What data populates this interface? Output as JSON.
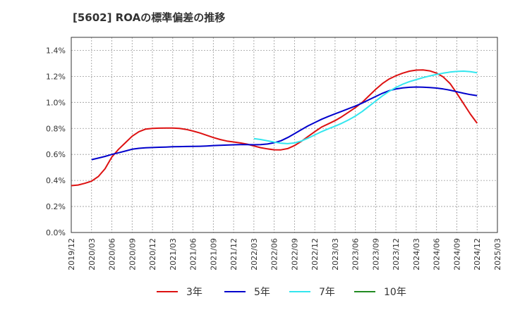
{
  "chart_data": {
    "type": "line",
    "title": "[5602]  ROAの標準偏差の推移",
    "xlabel": "",
    "ylabel": "",
    "ylim": [
      0,
      1.5
    ],
    "y_ticks": [
      0,
      0.2,
      0.4,
      0.6,
      0.8,
      1.0,
      1.2,
      1.4
    ],
    "y_tick_labels": [
      "0.0%",
      "0.2%",
      "0.4%",
      "0.6%",
      "0.8%",
      "1.0%",
      "1.2%",
      "1.4%"
    ],
    "x_tick_labels": [
      "2019/12",
      "2020/03",
      "2020/06",
      "2020/09",
      "2020/12",
      "2021/03",
      "2021/06",
      "2021/09",
      "2021/12",
      "2022/03",
      "2022/06",
      "2022/09",
      "2022/12",
      "2023/03",
      "2023/06",
      "2023/09",
      "2023/12",
      "2024/03",
      "2024/06",
      "2024/09",
      "2024/12",
      "2025/03"
    ],
    "grid": true,
    "legend_position": "bottom",
    "series": [
      {
        "name": "3年",
        "color": "#dd1111",
        "points": [
          [
            "2019/12",
            0.36
          ],
          [
            "2020/01",
            0.365
          ],
          [
            "2020/02",
            0.378
          ],
          [
            "2020/03",
            0.395
          ],
          [
            "2020/04",
            0.43
          ],
          [
            "2020/05",
            0.49
          ],
          [
            "2020/06",
            0.58
          ],
          [
            "2020/07",
            0.64
          ],
          [
            "2020/08",
            0.69
          ],
          [
            "2020/09",
            0.74
          ],
          [
            "2020/10",
            0.775
          ],
          [
            "2020/11",
            0.795
          ],
          [
            "2020/12",
            0.8
          ],
          [
            "2021/01",
            0.802
          ],
          [
            "2021/02",
            0.803
          ],
          [
            "2021/03",
            0.803
          ],
          [
            "2021/04",
            0.8
          ],
          [
            "2021/05",
            0.792
          ],
          [
            "2021/06",
            0.78
          ],
          [
            "2021/07",
            0.765
          ],
          [
            "2021/08",
            0.748
          ],
          [
            "2021/09",
            0.73
          ],
          [
            "2021/10",
            0.715
          ],
          [
            "2021/11",
            0.703
          ],
          [
            "2021/12",
            0.696
          ],
          [
            "2022/01",
            0.688
          ],
          [
            "2022/02",
            0.679
          ],
          [
            "2022/03",
            0.665
          ],
          [
            "2022/04",
            0.652
          ],
          [
            "2022/05",
            0.643
          ],
          [
            "2022/06",
            0.636
          ],
          [
            "2022/07",
            0.635
          ],
          [
            "2022/08",
            0.645
          ],
          [
            "2022/09",
            0.668
          ],
          [
            "2022/10",
            0.7
          ],
          [
            "2022/11",
            0.738
          ],
          [
            "2022/12",
            0.775
          ],
          [
            "2023/01",
            0.81
          ],
          [
            "2023/02",
            0.835
          ],
          [
            "2023/03",
            0.86
          ],
          [
            "2023/04",
            0.89
          ],
          [
            "2023/05",
            0.925
          ],
          [
            "2023/06",
            0.96
          ],
          [
            "2023/07",
            1.0
          ],
          [
            "2023/08",
            1.05
          ],
          [
            "2023/09",
            1.1
          ],
          [
            "2023/10",
            1.145
          ],
          [
            "2023/11",
            1.18
          ],
          [
            "2023/12",
            1.205
          ],
          [
            "2024/01",
            1.225
          ],
          [
            "2024/02",
            1.24
          ],
          [
            "2024/03",
            1.248
          ],
          [
            "2024/04",
            1.25
          ],
          [
            "2024/05",
            1.242
          ],
          [
            "2024/06",
            1.225
          ],
          [
            "2024/07",
            1.195
          ],
          [
            "2024/08",
            1.145
          ],
          [
            "2024/09",
            1.07
          ],
          [
            "2024/10",
            0.99
          ],
          [
            "2024/11",
            0.91
          ],
          [
            "2024/12",
            0.84
          ]
        ]
      },
      {
        "name": "5年",
        "color": "#0000cc",
        "points": [
          [
            "2020/03",
            0.56
          ],
          [
            "2020/04",
            0.572
          ],
          [
            "2020/05",
            0.585
          ],
          [
            "2020/06",
            0.6
          ],
          [
            "2020/07",
            0.613
          ],
          [
            "2020/08",
            0.626
          ],
          [
            "2020/09",
            0.64
          ],
          [
            "2020/10",
            0.647
          ],
          [
            "2020/11",
            0.651
          ],
          [
            "2020/12",
            0.653
          ],
          [
            "2021/01",
            0.655
          ],
          [
            "2021/02",
            0.657
          ],
          [
            "2021/03",
            0.659
          ],
          [
            "2021/04",
            0.66
          ],
          [
            "2021/05",
            0.661
          ],
          [
            "2021/06",
            0.662
          ],
          [
            "2021/07",
            0.663
          ],
          [
            "2021/08",
            0.665
          ],
          [
            "2021/09",
            0.668
          ],
          [
            "2021/10",
            0.67
          ],
          [
            "2021/11",
            0.672
          ],
          [
            "2021/12",
            0.674
          ],
          [
            "2022/01",
            0.675
          ],
          [
            "2022/02",
            0.675
          ],
          [
            "2022/03",
            0.674
          ],
          [
            "2022/04",
            0.675
          ],
          [
            "2022/05",
            0.68
          ],
          [
            "2022/06",
            0.69
          ],
          [
            "2022/07",
            0.705
          ],
          [
            "2022/08",
            0.73
          ],
          [
            "2022/09",
            0.76
          ],
          [
            "2022/10",
            0.79
          ],
          [
            "2022/11",
            0.82
          ],
          [
            "2022/12",
            0.845
          ],
          [
            "2023/01",
            0.87
          ],
          [
            "2023/02",
            0.892
          ],
          [
            "2023/03",
            0.912
          ],
          [
            "2023/04",
            0.932
          ],
          [
            "2023/05",
            0.952
          ],
          [
            "2023/06",
            0.972
          ],
          [
            "2023/07",
            0.995
          ],
          [
            "2023/08",
            1.02
          ],
          [
            "2023/09",
            1.045
          ],
          [
            "2023/10",
            1.07
          ],
          [
            "2023/11",
            1.09
          ],
          [
            "2023/12",
            1.103
          ],
          [
            "2024/01",
            1.111
          ],
          [
            "2024/02",
            1.116
          ],
          [
            "2024/03",
            1.118
          ],
          [
            "2024/04",
            1.117
          ],
          [
            "2024/05",
            1.114
          ],
          [
            "2024/06",
            1.11
          ],
          [
            "2024/07",
            1.103
          ],
          [
            "2024/08",
            1.094
          ],
          [
            "2024/09",
            1.082
          ],
          [
            "2024/10",
            1.07
          ],
          [
            "2024/11",
            1.06
          ],
          [
            "2024/12",
            1.052
          ]
        ]
      },
      {
        "name": "7年",
        "color": "#33e6ee",
        "points": [
          [
            "2022/03",
            0.722
          ],
          [
            "2022/04",
            0.715
          ],
          [
            "2022/05",
            0.705
          ],
          [
            "2022/06",
            0.695
          ],
          [
            "2022/07",
            0.686
          ],
          [
            "2022/08",
            0.683
          ],
          [
            "2022/09",
            0.688
          ],
          [
            "2022/10",
            0.703
          ],
          [
            "2022/11",
            0.725
          ],
          [
            "2022/12",
            0.75
          ],
          [
            "2023/01",
            0.775
          ],
          [
            "2023/02",
            0.797
          ],
          [
            "2023/03",
            0.817
          ],
          [
            "2023/04",
            0.84
          ],
          [
            "2023/05",
            0.866
          ],
          [
            "2023/06",
            0.895
          ],
          [
            "2023/07",
            0.93
          ],
          [
            "2023/08",
            0.97
          ],
          [
            "2023/09",
            1.01
          ],
          [
            "2023/10",
            1.05
          ],
          [
            "2023/11",
            1.085
          ],
          [
            "2023/12",
            1.115
          ],
          [
            "2024/01",
            1.14
          ],
          [
            "2024/02",
            1.16
          ],
          [
            "2024/03",
            1.175
          ],
          [
            "2024/04",
            1.19
          ],
          [
            "2024/05",
            1.203
          ],
          [
            "2024/06",
            1.215
          ],
          [
            "2024/07",
            1.225
          ],
          [
            "2024/08",
            1.233
          ],
          [
            "2024/09",
            1.238
          ],
          [
            "2024/10",
            1.24
          ],
          [
            "2024/11",
            1.236
          ],
          [
            "2024/12",
            1.228
          ]
        ]
      },
      {
        "name": "10年",
        "color": "#228b22",
        "points": []
      }
    ]
  }
}
